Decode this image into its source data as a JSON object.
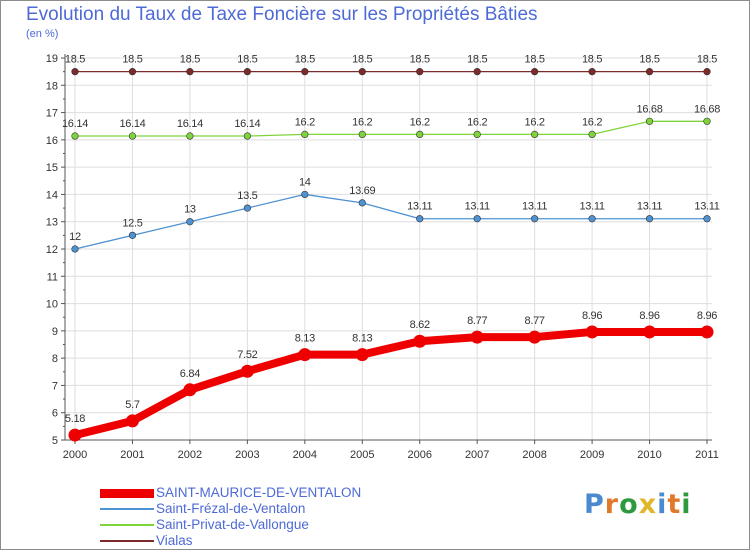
{
  "header": {
    "title": "Evolution du Taux de Taxe Foncière sur les Propriétés Bâties",
    "unit": "(en %)"
  },
  "logo": {
    "letters": [
      "P",
      "r",
      "o",
      "x",
      "i",
      "t",
      "i"
    ],
    "colors": [
      "#4a8ad0",
      "#e07a2a",
      "#2e9a3e",
      "#e1b72a",
      "#4a8ad0",
      "#e07a2a",
      "#2e9a3e"
    ]
  },
  "chart_data": {
    "type": "line",
    "title": "Evolution du Taux de Taxe Foncière sur les Propriétés Bâties",
    "ylabel": "(en %)",
    "xlabel": "",
    "ylim": [
      5,
      19
    ],
    "yticks": [
      5,
      6,
      7,
      8,
      9,
      10,
      11,
      12,
      13,
      14,
      15,
      16,
      17,
      18,
      19
    ],
    "categories": [
      "2000",
      "2001",
      "2002",
      "2003",
      "2004",
      "2005",
      "2006",
      "2007",
      "2008",
      "2009",
      "2010",
      "2011"
    ],
    "grid": true,
    "series": [
      {
        "name": "SAINT-MAURICE-DE-VENTALON",
        "color": "#ee0000",
        "thick": true,
        "values": [
          5.18,
          5.7,
          6.84,
          7.52,
          8.13,
          8.13,
          8.62,
          8.77,
          8.77,
          8.96,
          8.96,
          8.96
        ],
        "labels": [
          "5.18",
          "5.7",
          "6.84",
          "7.52",
          "8.13",
          "8.13",
          "8.62",
          "8.77",
          "8.77",
          "8.96",
          "8.96",
          "8.96"
        ]
      },
      {
        "name": "Saint-Frézal-de-Ventalon",
        "color": "#4f92d2",
        "thick": false,
        "values": [
          12,
          12.5,
          13,
          13.5,
          14,
          13.69,
          13.11,
          13.11,
          13.11,
          13.11,
          13.11,
          13.11
        ],
        "labels": [
          "12",
          "12.5",
          "13",
          "13.5",
          "14",
          "13.69",
          "13.11",
          "13.11",
          "13.11",
          "13.11",
          "13.11",
          "13.11"
        ]
      },
      {
        "name": "Saint-Privat-de-Vallongue",
        "color": "#7fd43c",
        "thick": false,
        "values": [
          16.14,
          16.14,
          16.14,
          16.14,
          16.2,
          16.2,
          16.2,
          16.2,
          16.2,
          16.2,
          16.68,
          16.68
        ],
        "labels": [
          "16.14",
          "16.14",
          "16.14",
          "16.14",
          "16.2",
          "16.2",
          "16.2",
          "16.2",
          "16.2",
          "16.2",
          "16.68",
          "16.68"
        ]
      },
      {
        "name": "Vialas",
        "color": "#7d2a2a",
        "thick": false,
        "values": [
          18.5,
          18.5,
          18.5,
          18.5,
          18.5,
          18.5,
          18.5,
          18.5,
          18.5,
          18.5,
          18.5,
          18.5
        ],
        "labels": [
          "18.5",
          "18.5",
          "18.5",
          "18.5",
          "18.5",
          "18.5",
          "18.5",
          "18.5",
          "18.5",
          "18.5",
          "18.5",
          "18.5"
        ]
      }
    ],
    "legend_position": "bottom-left"
  }
}
